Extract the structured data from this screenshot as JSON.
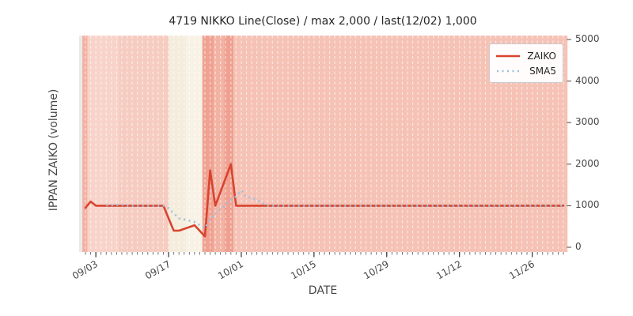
{
  "title": "4719 NIKKO Line(Close) / max 2,000 / last(12/02) 1,000",
  "axes": {
    "x_label": "DATE",
    "y_label": "IPPAN ZAIKO (volume)",
    "x_tick_labels": [
      "09/03",
      "09/17",
      "10/01",
      "10/15",
      "10/29",
      "11/12",
      "11/26"
    ],
    "y_tick_labels": [
      "0",
      "1000",
      "2000",
      "3000",
      "4000",
      "5000"
    ]
  },
  "legend": {
    "position": "upper right",
    "items": [
      {
        "label": "ZAIKO",
        "style": "solid",
        "color": "#d8442f"
      },
      {
        "label": "SMA5",
        "style": "dotted",
        "color": "#9dbfdd"
      }
    ]
  },
  "chart_data": {
    "type": "line",
    "title": "4719 NIKKO Line(Close) / max 2,000 / last(12/02) 1,000",
    "xlabel": "DATE",
    "ylabel": "IPPAN ZAIKO (volume)",
    "ylim": [
      0,
      5000
    ],
    "grid": "daily vertical dashed white lines",
    "legend_position": "upper right",
    "x": [
      "09/01",
      "09/02",
      "09/03",
      "09/04",
      "09/05",
      "09/08",
      "09/09",
      "09/10",
      "09/11",
      "09/12",
      "09/16",
      "09/17",
      "09/18",
      "09/19",
      "09/22",
      "09/24",
      "09/25",
      "09/26",
      "09/29",
      "09/30",
      "10/01",
      "10/02",
      "10/03",
      "10/06",
      "10/07",
      "10/08",
      "10/09",
      "10/10",
      "10/14",
      "10/15",
      "10/16",
      "10/17",
      "10/20",
      "10/21",
      "10/22",
      "10/23",
      "10/24",
      "10/27",
      "10/28",
      "10/29",
      "10/30",
      "10/31",
      "11/04",
      "11/05",
      "11/06",
      "11/07",
      "11/10",
      "11/11",
      "11/12",
      "11/13",
      "11/14",
      "11/17",
      "11/18",
      "11/19",
      "11/20",
      "11/21",
      "11/25",
      "11/26",
      "11/27",
      "11/28",
      "12/01",
      "12/02"
    ],
    "series": [
      {
        "name": "ZAIKO",
        "color": "#d8442f",
        "style": "solid",
        "values": [
          950,
          1100,
          1000,
          1000,
          1000,
          1000,
          1000,
          1000,
          1000,
          1000,
          1000,
          700,
          400,
          400,
          530,
          260,
          1850,
          1000,
          2000,
          1000,
          1000,
          1000,
          1000,
          1000,
          1000,
          1000,
          1000,
          1000,
          1000,
          1000,
          1000,
          1000,
          1000,
          1000,
          1000,
          1000,
          1000,
          1000,
          1000,
          1000,
          1000,
          1000,
          1000,
          1000,
          1000,
          1000,
          1000,
          1000,
          1000,
          1000,
          1000,
          1000,
          1000,
          1000,
          1000,
          1000,
          1000,
          1000,
          1000,
          1000,
          1000,
          1000
        ]
      },
      {
        "name": "SMA5",
        "color": "#9dbfdd",
        "style": "dotted",
        "values": [
          null,
          null,
          null,
          null,
          1010,
          1020,
          1000,
          1000,
          1000,
          1000,
          1000,
          940,
          820,
          700,
          606,
          458,
          688,
          808,
          1128,
          1222,
          1370,
          1200,
          1200,
          1000,
          1000,
          1000,
          1000,
          1000,
          1000,
          1000,
          1000,
          1000,
          1000,
          1000,
          1000,
          1000,
          1000,
          1000,
          1000,
          1000,
          1000,
          1000,
          1000,
          1000,
          1000,
          1000,
          1000,
          1000,
          1000,
          1000,
          1000,
          1000,
          1000,
          1000,
          1000,
          1000,
          1000,
          1000,
          1000,
          1000,
          1000,
          1000
        ]
      }
    ],
    "background_bands": [
      {
        "from_day": -1.3,
        "to_day": -0.6,
        "color": "#e9e9e9"
      },
      {
        "from_day": -0.6,
        "to_day": 0.4,
        "color": "#f3b1a3"
      },
      {
        "from_day": 0.4,
        "to_day": 6.4,
        "color": "#f8d3c9"
      },
      {
        "from_day": 6.4,
        "to_day": 16.0,
        "color": "#f6ccc1"
      },
      {
        "from_day": 16.0,
        "to_day": 19.4,
        "color": "#f4ecdc"
      },
      {
        "from_day": 19.4,
        "to_day": 22.5,
        "color": "#f8f2e6"
      },
      {
        "from_day": 22.5,
        "to_day": 24.7,
        "color": "#efa292"
      },
      {
        "from_day": 24.7,
        "to_day": 26.7,
        "color": "#f3b3a4"
      },
      {
        "from_day": 26.7,
        "to_day": 28.5,
        "color": "#efa090"
      },
      {
        "from_day": 28.5,
        "to_day": 92.8,
        "color": "#f5c2b5"
      }
    ]
  }
}
